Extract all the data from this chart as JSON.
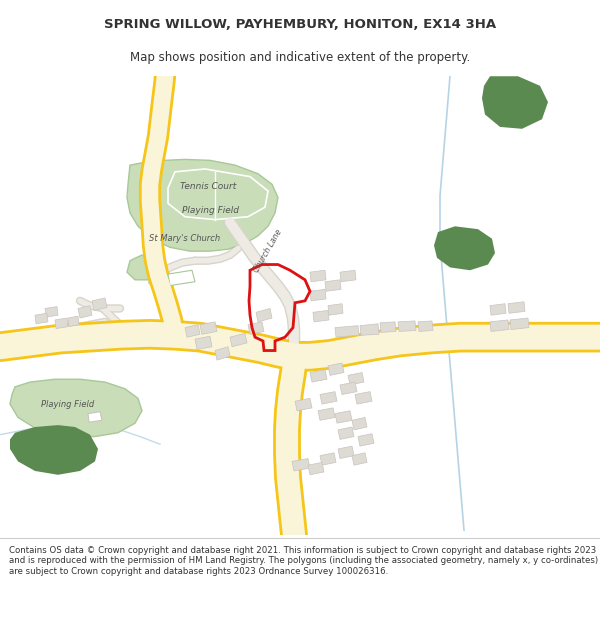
{
  "title": "SPRING WILLOW, PAYHEMBURY, HONITON, EX14 3HA",
  "subtitle": "Map shows position and indicative extent of the property.",
  "footer": "Contains OS data © Crown copyright and database right 2021. This information is subject to Crown copyright and database rights 2023 and is reproduced with the permission of HM Land Registry. The polygons (including the associated geometry, namely x, y co-ordinates) are subject to Crown copyright and database rights 2023 Ordnance Survey 100026316.",
  "map_bg": "#f2f0eb",
  "road_yellow": "#f5c518",
  "road_yellow_outline": "#e8b800",
  "road_fill": "#faf5d8",
  "building_color": "#dedad4",
  "building_outline": "#c8c4be",
  "green_light": "#c8ddb8",
  "green_light_outline": "#a8c898",
  "green_dark": "#5a8a50",
  "stream_color": "#aacce0",
  "red_color": "#dd1111",
  "text_dark": "#333333",
  "text_map": "#555555",
  "white": "#ffffff",
  "road_grey_fill": "#eeebe4",
  "road_grey_outline": "#d8d4cc"
}
